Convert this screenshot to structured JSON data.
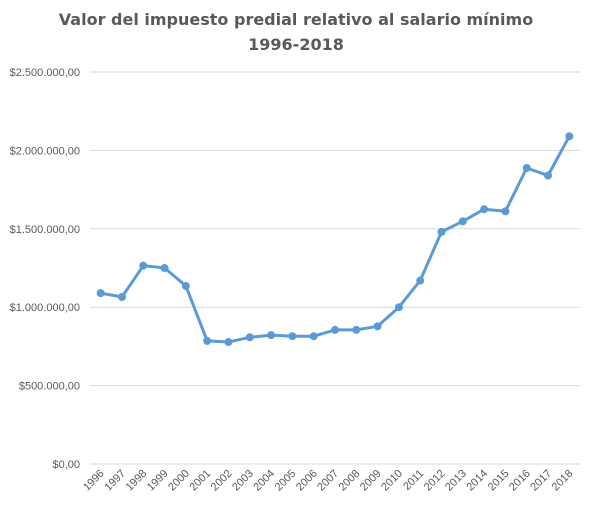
{
  "chart_data": {
    "type": "line",
    "title_lines": [
      "Valor del impuesto predial relativo al salario mínimo",
      "1996-2018"
    ],
    "xlabel": "",
    "ylabel": "",
    "categories": [
      "1996",
      "1997",
      "1998",
      "1999",
      "2000",
      "2001",
      "2002",
      "2003",
      "2004",
      "2005",
      "2006",
      "2007",
      "2008",
      "2009",
      "2010",
      "2011",
      "2012",
      "2013",
      "2014",
      "2015",
      "2016",
      "2017",
      "2018"
    ],
    "series": [
      {
        "values": [
          1090000,
          1065000,
          1265000,
          1250000,
          1135000,
          785000,
          778000,
          808000,
          822000,
          815000,
          815000,
          855000,
          855000,
          878000,
          1000000,
          1170000,
          1480000,
          1548000,
          1625000,
          1612000,
          1888000,
          1840000,
          2090000
        ]
      }
    ],
    "ylim": [
      0,
      2500000
    ],
    "y_ticks": [
      {
        "value": 0,
        "label": "$0,00"
      },
      {
        "value": 500000,
        "label": "$500.000,00"
      },
      {
        "value": 1000000,
        "label": "$1.000.000,00"
      },
      {
        "value": 1500000,
        "label": "$1.500.000,00"
      },
      {
        "value": 2000000,
        "label": "$2.000.000,00"
      },
      {
        "value": 2500000,
        "label": "$2.500.000,00"
      }
    ],
    "grid": true,
    "legend": "none",
    "colors": {
      "line": "#5b9bd5",
      "grid": "#d9d9d9",
      "text": "#595959"
    }
  }
}
